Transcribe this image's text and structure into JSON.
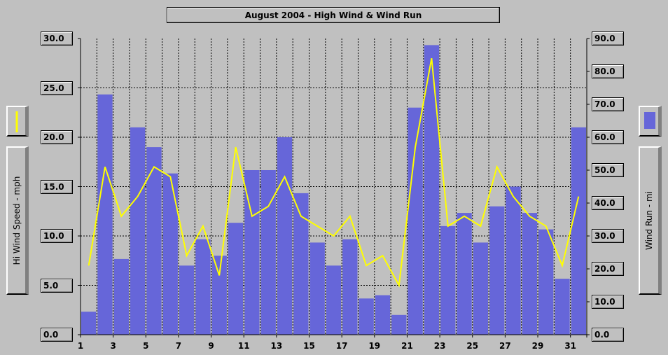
{
  "chart_data": {
    "type": "bar",
    "title": "August 2004 - High Wind & Wind Run",
    "ylabel_left": "Hi Wind Speed - mph",
    "ylabel_right": "Wind Run - mi",
    "y_left_lim": [
      0,
      30
    ],
    "y_right_lim": [
      0,
      90
    ],
    "y_left_ticks": [
      "0.0",
      "5.0",
      "10.0",
      "15.0",
      "20.0",
      "25.0",
      "30.0"
    ],
    "y_right_ticks": [
      "0.0",
      "10.0",
      "20.0",
      "30.0",
      "40.0",
      "50.0",
      "60.0",
      "70.0",
      "80.0",
      "90.0"
    ],
    "x_tick_labels": [
      "1",
      "3",
      "5",
      "7",
      "9",
      "11",
      "13",
      "15",
      "17",
      "19",
      "21",
      "23",
      "25",
      "27",
      "29",
      "31"
    ],
    "days": [
      1,
      2,
      3,
      4,
      5,
      6,
      7,
      8,
      9,
      10,
      11,
      12,
      13,
      14,
      15,
      16,
      17,
      18,
      19,
      20,
      21,
      22,
      23,
      24,
      25,
      26,
      27,
      28,
      29,
      30,
      31
    ],
    "grid": true,
    "series": [
      {
        "axis": "right",
        "type": "bar",
        "color": "#6666d9",
        "values": [
          7,
          73,
          23,
          63,
          57,
          49,
          21,
          29,
          24,
          34,
          50,
          50,
          60,
          43,
          28,
          21,
          29,
          11,
          12,
          6,
          69,
          88,
          33,
          37,
          28,
          39,
          45,
          37,
          32,
          17,
          63
        ]
      },
      {
        "axis": "left",
        "type": "line",
        "color": "#ffff00",
        "values": [
          7,
          17,
          12,
          14,
          17,
          16,
          8,
          11,
          6,
          19,
          12,
          13,
          16,
          12,
          11,
          10,
          12,
          7,
          8,
          5,
          19,
          28,
          11,
          12,
          11,
          17,
          14,
          12,
          11,
          7,
          14
        ]
      }
    ]
  }
}
